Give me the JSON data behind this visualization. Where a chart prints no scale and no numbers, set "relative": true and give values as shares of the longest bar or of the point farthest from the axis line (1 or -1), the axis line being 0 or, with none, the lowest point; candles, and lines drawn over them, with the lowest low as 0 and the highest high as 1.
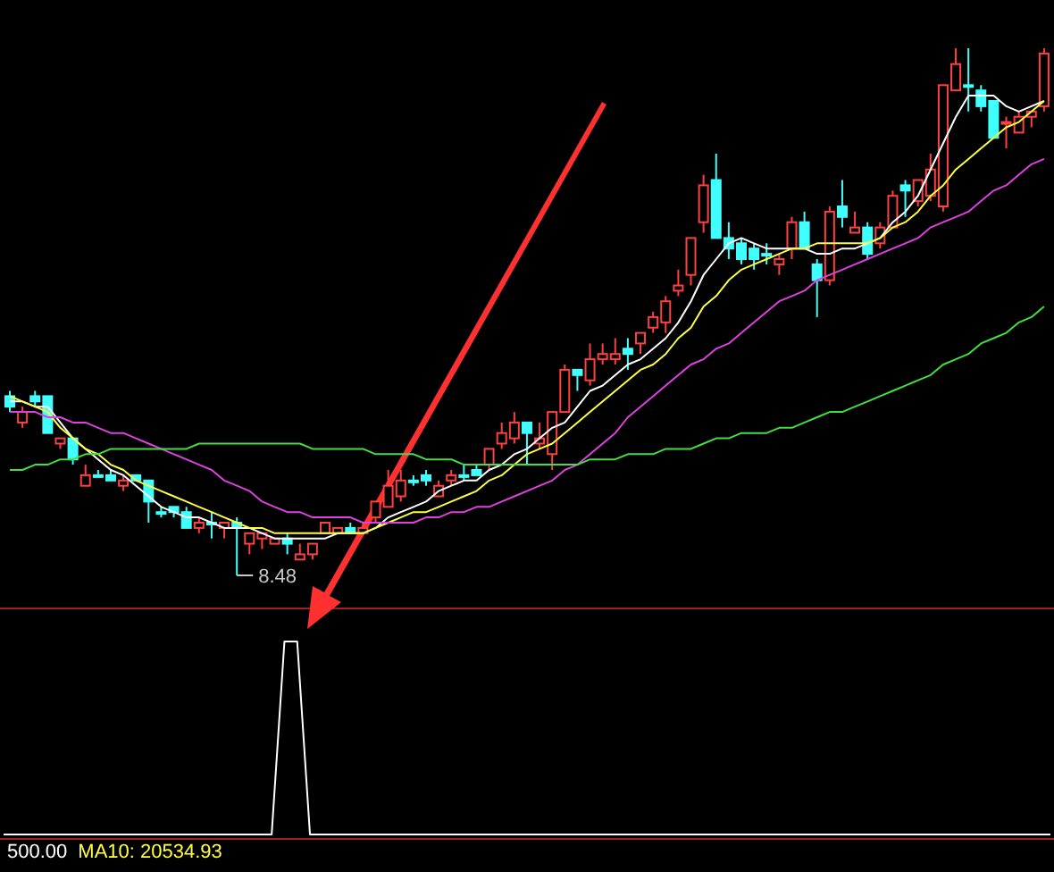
{
  "chart_data": [
    {
      "type": "candlestick",
      "relative": true,
      "categories": [
        null,
        null,
        null,
        null,
        null,
        null,
        null,
        null,
        null,
        null,
        null,
        null,
        null,
        null,
        null,
        null,
        null,
        null,
        null,
        null,
        null,
        null,
        null,
        null,
        null,
        null,
        null,
        null,
        null,
        null,
        null,
        null,
        null,
        null,
        null,
        null,
        null,
        null,
        null,
        null,
        null,
        null,
        null,
        null,
        null,
        null,
        null,
        null,
        null,
        null,
        null,
        null,
        null,
        null,
        null,
        null,
        null,
        null,
        null,
        null,
        null,
        null,
        null,
        null,
        null,
        null,
        null,
        null,
        null,
        null,
        null,
        null,
        null,
        null,
        null,
        null,
        null,
        null,
        null,
        null,
        null,
        null,
        null
      ],
      "ohlc": [
        [
          0.34,
          0.35,
          0.31,
          0.32
        ],
        [
          0.29,
          0.32,
          0.28,
          0.31
        ],
        [
          0.34,
          0.35,
          0.32,
          0.33
        ],
        [
          0.34,
          0.34,
          0.27,
          0.27
        ],
        [
          0.25,
          0.26,
          0.24,
          0.26
        ],
        [
          0.26,
          0.26,
          0.21,
          0.22
        ],
        [
          0.17,
          0.21,
          0.17,
          0.19
        ],
        [
          0.19,
          0.2,
          0.19,
          0.19
        ],
        [
          0.19,
          0.2,
          0.18,
          0.18
        ],
        [
          0.17,
          0.19,
          0.16,
          0.18
        ],
        [
          0.19,
          0.19,
          0.18,
          0.18
        ],
        [
          0.18,
          0.18,
          0.1,
          0.14
        ],
        [
          0.12,
          0.13,
          0.11,
          0.12
        ],
        [
          0.13,
          0.13,
          0.11,
          0.12
        ],
        [
          0.12,
          0.13,
          0.09,
          0.09
        ],
        [
          0.09,
          0.11,
          0.08,
          0.1
        ],
        [
          0.1,
          0.12,
          0.07,
          0.1
        ],
        [
          0.09,
          0.1,
          0.07,
          0.1
        ],
        [
          0.1,
          0.11,
          0,
          0.09
        ],
        [
          0.06,
          0.08,
          0.04,
          0.08
        ],
        [
          0.07,
          0.08,
          0.05,
          0.08
        ],
        [
          0.06,
          0.07,
          0.06,
          0.07
        ],
        [
          0.07,
          0.08,
          0.04,
          0.06
        ],
        [
          0.03,
          0.06,
          0.03,
          0.04
        ],
        [
          0.04,
          0.06,
          0.03,
          0.06
        ],
        [
          0.08,
          0.1,
          0.08,
          0.1
        ],
        [
          0.08,
          0.09,
          0.08,
          0.09
        ],
        [
          0.09,
          0.1,
          0.08,
          0.08
        ],
        [
          0.08,
          0.1,
          0.08,
          0.09
        ],
        [
          0.11,
          0.14,
          0.1,
          0.14
        ],
        [
          0.13,
          0.2,
          0.13,
          0.17
        ],
        [
          0.15,
          0.2,
          0.14,
          0.18
        ],
        [
          0.18,
          0.19,
          0.17,
          0.18
        ],
        [
          0.19,
          0.2,
          0.17,
          0.18
        ],
        [
          0.15,
          0.18,
          0.15,
          0.17
        ],
        [
          0.18,
          0.2,
          0.17,
          0.19
        ],
        [
          0.19,
          0.21,
          0.18,
          0.19
        ],
        [
          0.2,
          0.21,
          0.19,
          0.19
        ],
        [
          0.21,
          0.24,
          0.2,
          0.24
        ],
        [
          0.25,
          0.29,
          0.24,
          0.27
        ],
        [
          0.26,
          0.31,
          0.25,
          0.29
        ],
        [
          0.29,
          0.29,
          0.21,
          0.27
        ],
        [
          0.25,
          0.29,
          0.24,
          0.26
        ],
        [
          0.23,
          0.31,
          0.2,
          0.31
        ],
        [
          0.31,
          0.4,
          0.31,
          0.39
        ],
        [
          0.39,
          0.39,
          0.35,
          0.38
        ],
        [
          0.37,
          0.44,
          0.36,
          0.41
        ],
        [
          0.41,
          0.44,
          0.4,
          0.42
        ],
        [
          0.41,
          0.45,
          0.4,
          0.42
        ],
        [
          0.43,
          0.45,
          0.39,
          0.42
        ],
        [
          0.44,
          0.46,
          0.42,
          0.46
        ],
        [
          0.47,
          0.5,
          0.46,
          0.49
        ],
        [
          0.48,
          0.53,
          0.46,
          0.52
        ],
        [
          0.54,
          0.58,
          0.53,
          0.55
        ],
        [
          0.57,
          0.64,
          0.55,
          0.64
        ],
        [
          0.67,
          0.76,
          0.65,
          0.74
        ],
        [
          0.75,
          0.8,
          0.64,
          0.64
        ],
        [
          0.64,
          0.67,
          0.6,
          0.62
        ],
        [
          0.63,
          0.64,
          0.59,
          0.6
        ],
        [
          0.62,
          0.63,
          0.58,
          0.6
        ],
        [
          0.61,
          0.63,
          0.59,
          0.61
        ],
        [
          0.59,
          0.61,
          0.57,
          0.6
        ],
        [
          0.62,
          0.68,
          0.6,
          0.67
        ],
        [
          0.67,
          0.69,
          0.62,
          0.62
        ],
        [
          0.59,
          0.6,
          0.49,
          0.56
        ],
        [
          0.56,
          0.7,
          0.55,
          0.69
        ],
        [
          0.7,
          0.75,
          0.66,
          0.68
        ],
        [
          0.65,
          0.69,
          0.65,
          0.66
        ],
        [
          0.66,
          0.67,
          0.6,
          0.61
        ],
        [
          0.63,
          0.67,
          0.62,
          0.66
        ],
        [
          0.66,
          0.73,
          0.66,
          0.72
        ],
        [
          0.74,
          0.75,
          0.68,
          0.73
        ],
        [
          0.71,
          0.75,
          0.7,
          0.75
        ],
        [
          0.72,
          0.8,
          0.71,
          0.77
        ],
        [
          0.7,
          0.93,
          0.69,
          0.93
        ],
        [
          0.92,
          1,
          0.92,
          0.97
        ],
        [
          0.93,
          1,
          0.88,
          0.93
        ],
        [
          0.92,
          0.93,
          0.88,
          0.89
        ],
        [
          0.9,
          0.9,
          0.83,
          0.83
        ],
        [
          0.86,
          0.87,
          0.81,
          0.86
        ],
        [
          0.84,
          0.88,
          0.84,
          0.87
        ],
        [
          0.87,
          0.88,
          0.85,
          0.88
        ],
        [
          0.89,
          1,
          0.88,
          0.99
        ]
      ],
      "colors": [
        "#40ffff",
        "#ff4040",
        "#40ffff",
        "#40ffff",
        "#ff4040",
        "#40ffff",
        "#ff4040",
        "#40ffff",
        "#40ffff",
        "#ff4040",
        "#40ffff",
        "#40ffff",
        "#40ffff",
        "#40ffff",
        "#40ffff",
        "#ff4040",
        "#40ffff",
        "#ff4040",
        "#40ffff",
        "#ff4040",
        "#ff4040",
        "#ff4040",
        "#40ffff",
        "#ff4040",
        "#ff4040",
        "#ff4040",
        "#ff4040",
        "#40ffff",
        "#ff4040",
        "#ff4040",
        "#ff4040",
        "#ff4040",
        "#40ffff",
        "#40ffff",
        "#ff4040",
        "#ff4040",
        "#40ffff",
        "#40ffff",
        "#ff4040",
        "#ff4040",
        "#ff4040",
        "#40ffff",
        "#ff4040",
        "#ff4040",
        "#ff4040",
        "#40ffff",
        "#ff4040",
        "#ff4040",
        "#ff4040",
        "#40ffff",
        "#ff4040",
        "#ff4040",
        "#ff4040",
        "#ff4040",
        "#ff4040",
        "#ff4040",
        "#40ffff",
        "#40ffff",
        "#40ffff",
        "#40ffff",
        "#40ffff",
        "#ff4040",
        "#ff4040",
        "#40ffff",
        "#40ffff",
        "#ff4040",
        "#40ffff",
        "#ff4040",
        "#40ffff",
        "#ff4040",
        "#ff4040",
        "#40ffff",
        "#ff4040",
        "#ff4040",
        "#ff4040",
        "#ff4040",
        "#40ffff",
        "#40ffff",
        "#40ffff",
        "#ff4040",
        "#ff4040",
        "#ff4040",
        "#ff4040"
      ],
      "series": [
        {
          "type": "line",
          "color": "#ffffff",
          "values": [
            0.33,
            0.33,
            0.32,
            0.32,
            0.29,
            0.26,
            0.24,
            0.22,
            0.2,
            0.19,
            0.17,
            0.15,
            0.13,
            0.12,
            0.11,
            0.11,
            0.1,
            0.09,
            0.09,
            0.09,
            0.08,
            0.07,
            0.07,
            0.07,
            0.07,
            0.07,
            0.08,
            0.08,
            0.08,
            0.09,
            0.11,
            0.12,
            0.13,
            0.14,
            0.16,
            0.17,
            0.18,
            0.18,
            0.2,
            0.21,
            0.23,
            0.24,
            0.26,
            0.28,
            0.29,
            0.32,
            0.35,
            0.36,
            0.38,
            0.4,
            0.41,
            0.43,
            0.45,
            0.48,
            0.52,
            0.57,
            0.6,
            0.63,
            0.64,
            0.63,
            0.62,
            0.62,
            0.62,
            0.62,
            0.61,
            0.61,
            0.62,
            0.62,
            0.63,
            0.64,
            0.67,
            0.69,
            0.72,
            0.77,
            0.82,
            0.87,
            0.91,
            0.91,
            0.91,
            0.89,
            0.88,
            0.89,
            0.9
          ]
        },
        {
          "type": "line",
          "color": "#ffff40",
          "values": [
            0.34,
            0.33,
            0.32,
            0.31,
            0.28,
            0.26,
            0.24,
            0.23,
            0.21,
            0.2,
            0.18,
            0.17,
            0.16,
            0.15,
            0.14,
            0.13,
            0.12,
            0.11,
            0.1,
            0.09,
            0.09,
            0.08,
            0.08,
            0.08,
            0.08,
            0.08,
            0.08,
            0.08,
            0.08,
            0.09,
            0.1,
            0.11,
            0.12,
            0.12,
            0.13,
            0.14,
            0.15,
            0.16,
            0.18,
            0.19,
            0.21,
            0.23,
            0.24,
            0.25,
            0.27,
            0.29,
            0.31,
            0.33,
            0.35,
            0.37,
            0.39,
            0.4,
            0.42,
            0.45,
            0.47,
            0.51,
            0.53,
            0.56,
            0.58,
            0.59,
            0.6,
            0.61,
            0.62,
            0.62,
            0.63,
            0.63,
            0.63,
            0.63,
            0.63,
            0.64,
            0.66,
            0.67,
            0.69,
            0.72,
            0.74,
            0.77,
            0.79,
            0.81,
            0.83,
            0.85,
            0.86,
            0.88,
            0.9
          ]
        },
        {
          "type": "line",
          "color": "#e040e0",
          "values": [
            0.31,
            0.31,
            0.31,
            0.3,
            0.3,
            0.29,
            0.29,
            0.28,
            0.27,
            0.27,
            0.26,
            0.25,
            0.24,
            0.23,
            0.22,
            0.21,
            0.2,
            0.18,
            0.17,
            0.16,
            0.14,
            0.13,
            0.12,
            0.12,
            0.11,
            0.11,
            0.11,
            0.11,
            0.1,
            0.1,
            0.1,
            0.1,
            0.1,
            0.11,
            0.11,
            0.12,
            0.12,
            0.13,
            0.13,
            0.14,
            0.15,
            0.16,
            0.17,
            0.18,
            0.2,
            0.21,
            0.23,
            0.25,
            0.27,
            0.3,
            0.32,
            0.34,
            0.36,
            0.38,
            0.4,
            0.41,
            0.43,
            0.44,
            0.46,
            0.48,
            0.5,
            0.52,
            0.53,
            0.54,
            0.56,
            0.57,
            0.58,
            0.59,
            0.6,
            0.61,
            0.62,
            0.63,
            0.64,
            0.66,
            0.67,
            0.68,
            0.69,
            0.71,
            0.73,
            0.74,
            0.76,
            0.78,
            0.79
          ]
        },
        {
          "type": "line",
          "color": "#40e040",
          "values": [
            0.2,
            0.2,
            0.21,
            0.21,
            0.22,
            0.22,
            0.23,
            0.23,
            0.24,
            0.24,
            0.24,
            0.24,
            0.24,
            0.24,
            0.24,
            0.25,
            0.25,
            0.25,
            0.25,
            0.25,
            0.25,
            0.25,
            0.25,
            0.25,
            0.24,
            0.24,
            0.24,
            0.24,
            0.24,
            0.23,
            0.23,
            0.23,
            0.23,
            0.22,
            0.22,
            0.22,
            0.21,
            0.21,
            0.21,
            0.21,
            0.21,
            0.21,
            0.21,
            0.21,
            0.21,
            0.21,
            0.22,
            0.22,
            0.22,
            0.23,
            0.23,
            0.23,
            0.24,
            0.24,
            0.24,
            0.25,
            0.26,
            0.26,
            0.27,
            0.27,
            0.27,
            0.28,
            0.28,
            0.29,
            0.3,
            0.31,
            0.31,
            0.32,
            0.33,
            0.34,
            0.35,
            0.36,
            0.37,
            0.38,
            0.4,
            0.41,
            0.42,
            0.44,
            0.45,
            0.46,
            0.48,
            0.49,
            0.51
          ]
        }
      ],
      "annotations": [
        "8.48"
      ]
    },
    {
      "type": "line",
      "relative": true,
      "categories": [
        null,
        null,
        null,
        null,
        null,
        null,
        null,
        null,
        null,
        null,
        null,
        null,
        null,
        null,
        null,
        null,
        null,
        null,
        null,
        null,
        null,
        null,
        null,
        null,
        null,
        null,
        null,
        null,
        null,
        null,
        null,
        null,
        null,
        null,
        null,
        null,
        null,
        null,
        null,
        null,
        null,
        null,
        null,
        null,
        null,
        null,
        null,
        null,
        null,
        null,
        null,
        null,
        null,
        null,
        null,
        null,
        null,
        null,
        null,
        null,
        null,
        null,
        null,
        null,
        null,
        null,
        null,
        null,
        null,
        null,
        null,
        null,
        null,
        null,
        null,
        null,
        null,
        null,
        null,
        null,
        null,
        null,
        null
      ],
      "series": [
        {
          "color": "#ffffff",
          "values": [
            0,
            0,
            0,
            0,
            0,
            0,
            0,
            0,
            0,
            0,
            0,
            0,
            0,
            0,
            0,
            0,
            0,
            0,
            0,
            0,
            0,
            0,
            1,
            1,
            0,
            0,
            0,
            0,
            0,
            0,
            0,
            0,
            0,
            0,
            0,
            0,
            0,
            0,
            0,
            0,
            0,
            0,
            0,
            0,
            0,
            0,
            0,
            0,
            0,
            0,
            0,
            0,
            0,
            0,
            0,
            0,
            0,
            0,
            0,
            0,
            0,
            0,
            0,
            0,
            0,
            0,
            0,
            0,
            0,
            0,
            0,
            0,
            0,
            0,
            0,
            0,
            0,
            0,
            0,
            0,
            0,
            0,
            0
          ]
        }
      ],
      "annotations": [
        "500.00",
        "MA10: 20534.93"
      ]
    }
  ]
}
